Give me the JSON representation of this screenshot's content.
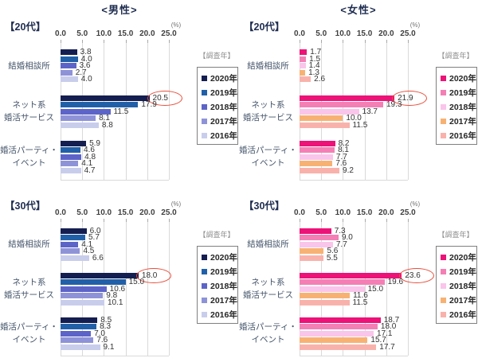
{
  "header": {
    "male_title": "<男性>",
    "female_title": "<女性>"
  },
  "labels": {
    "percent": "(%)",
    "survey_year": "【調査年】"
  },
  "axis_ticks": [
    "0.0",
    "5.0",
    "10.0",
    "15.0",
    "20.0",
    "25.0"
  ],
  "years": [
    "2020年",
    "2019年",
    "2018年",
    "2017年",
    "2016年"
  ],
  "palette": {
    "male": [
      "#141e50",
      "#2160a8",
      "#5d64c8",
      "#8e93d8",
      "#c9cdec"
    ],
    "female": [
      "#ec1277",
      "#f47fb5",
      "#fac5ea",
      "#f7b273",
      "#f9b2ab"
    ],
    "annotation": "#e94f3d",
    "gridline": "#d9d9d9"
  },
  "chart_data": [
    {
      "type": "bar",
      "orientation": "horizontal",
      "id": "male-20s",
      "gender": "male",
      "age_label": "【20代】",
      "categories": [
        "結婚相談所",
        "ネット系\n婚活サービス",
        "婚活パーティ・\nイベント"
      ],
      "xlim": [
        0,
        25
      ],
      "series": [
        {
          "name": "2020年",
          "values": [
            3.8,
            20.5,
            5.9
          ]
        },
        {
          "name": "2019年",
          "values": [
            4.0,
            17.9,
            4.6
          ]
        },
        {
          "name": "2018年",
          "values": [
            3.6,
            11.5,
            4.8
          ]
        },
        {
          "name": "2017年",
          "values": [
            2.7,
            8.1,
            4.1
          ]
        },
        {
          "name": "2016年",
          "values": [
            4.0,
            8.8,
            4.7
          ]
        }
      ],
      "circled": {
        "series": 0,
        "category": 1,
        "value": 20.5
      }
    },
    {
      "type": "bar",
      "orientation": "horizontal",
      "id": "female-20s",
      "gender": "female",
      "age_label": "【20代】",
      "categories": [
        "結婚相談所",
        "ネット系\n婚活サービス",
        "婚活パーティ・\nイベント"
      ],
      "xlim": [
        0,
        25
      ],
      "series": [
        {
          "name": "2020年",
          "values": [
            1.7,
            21.9,
            8.2
          ]
        },
        {
          "name": "2019年",
          "values": [
            1.5,
            19.3,
            8.1
          ]
        },
        {
          "name": "2018年",
          "values": [
            1.4,
            13.7,
            7.7
          ]
        },
        {
          "name": "2017年",
          "values": [
            1.3,
            10.0,
            7.6
          ]
        },
        {
          "name": "2016年",
          "values": [
            2.6,
            11.5,
            9.2
          ]
        }
      ],
      "circled": {
        "series": 0,
        "category": 1,
        "value": 21.9
      }
    },
    {
      "type": "bar",
      "orientation": "horizontal",
      "id": "male-30s",
      "gender": "male",
      "age_label": "【30代】",
      "categories": [
        "結婚相談所",
        "ネット系\n婚活サービス",
        "婚活パーティ・\nイベント"
      ],
      "xlim": [
        0,
        25
      ],
      "series": [
        {
          "name": "2020年",
          "values": [
            6.0,
            18.0,
            8.5
          ]
        },
        {
          "name": "2019年",
          "values": [
            5.7,
            15.0,
            8.3
          ]
        },
        {
          "name": "2018年",
          "values": [
            4.1,
            10.6,
            7.0
          ]
        },
        {
          "name": "2017年",
          "values": [
            4.5,
            9.8,
            7.6
          ]
        },
        {
          "name": "2016年",
          "values": [
            6.6,
            10.1,
            9.1
          ]
        }
      ],
      "circled": {
        "series": 0,
        "category": 1,
        "value": 18.0
      }
    },
    {
      "type": "bar",
      "orientation": "horizontal",
      "id": "female-30s",
      "gender": "female",
      "age_label": "【30代】",
      "categories": [
        "結婚相談所",
        "ネット系\n婚活サービス",
        "婚活パーティ・\nイベント"
      ],
      "xlim": [
        0,
        25
      ],
      "series": [
        {
          "name": "2020年",
          "values": [
            7.3,
            23.6,
            18.7
          ]
        },
        {
          "name": "2019年",
          "values": [
            9.0,
            19.6,
            18.0
          ]
        },
        {
          "name": "2018年",
          "values": [
            7.7,
            15.0,
            17.1
          ]
        },
        {
          "name": "2017年",
          "values": [
            5.6,
            11.6,
            15.7
          ]
        },
        {
          "name": "2016年",
          "values": [
            5.5,
            11.5,
            17.7
          ]
        }
      ],
      "circled": {
        "series": 0,
        "category": 1,
        "value": 23.6
      }
    }
  ]
}
